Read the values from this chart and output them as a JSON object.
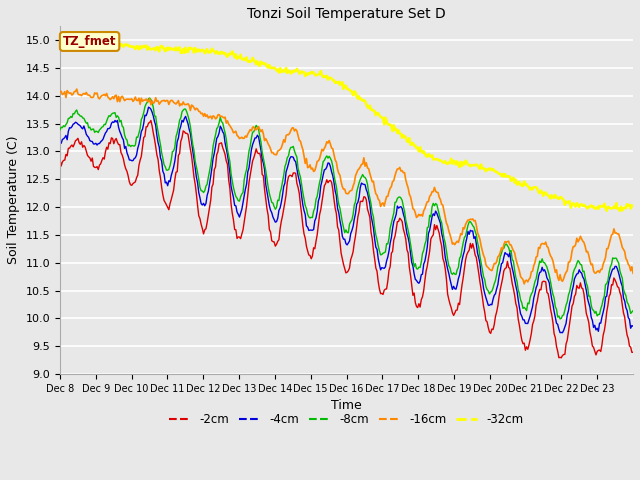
{
  "title": "Tonzi Soil Temperature Set D",
  "xlabel": "Time",
  "ylabel": "Soil Temperature (C)",
  "ylim": [
    9.0,
    15.25
  ],
  "yticks": [
    9.0,
    9.5,
    10.0,
    10.5,
    11.0,
    11.5,
    12.0,
    12.5,
    13.0,
    13.5,
    14.0,
    14.5,
    15.0
  ],
  "series": {
    "-2cm": {
      "color": "#dd0000",
      "lw": 1.0
    },
    "-4cm": {
      "color": "#0000dd",
      "lw": 1.0
    },
    "-8cm": {
      "color": "#00bb00",
      "lw": 1.0
    },
    "-16cm": {
      "color": "#ff8800",
      "lw": 1.2
    },
    "-32cm": {
      "color": "#ffff00",
      "lw": 1.8
    }
  },
  "legend_label": "TZ_fmet",
  "xtick_labels": [
    "Dec 8",
    "Dec 9",
    "Dec 10",
    "Dec 11",
    "Dec 12",
    "Dec 13",
    "Dec 14",
    "Dec 15",
    "Dec 16",
    "Dec 17",
    "Dec 18",
    "Dec 19",
    "Dec 20",
    "Dec 21",
    "Dec 22",
    "Dec 23"
  ],
  "n_points": 480,
  "fig_facecolor": "#e8e8e8",
  "ax_facecolor": "#e8e8e8"
}
